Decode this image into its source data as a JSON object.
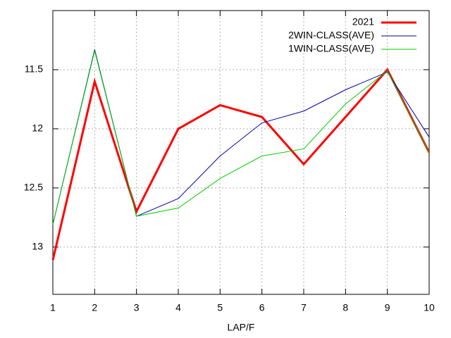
{
  "chart_data": {
    "type": "line",
    "xlabel": "LAP/F",
    "x": [
      1,
      2,
      3,
      4,
      5,
      6,
      7,
      8,
      9,
      10
    ],
    "xlim": [
      1,
      10
    ],
    "xticks": [
      1,
      2,
      3,
      4,
      5,
      6,
      7,
      8,
      9,
      10
    ],
    "ylim": [
      13.4,
      11.0
    ],
    "yticks": [
      13,
      12.5,
      12,
      11.5
    ],
    "grid": true,
    "legend": "top-right",
    "series": [
      {
        "name": "2021",
        "color": "#ff0000",
        "width": 3,
        "values": [
          13.11,
          11.6,
          12.7,
          12.0,
          11.8,
          11.9,
          12.3,
          11.9,
          11.5,
          12.2
        ]
      },
      {
        "name": "2WIN-CLASS(AVE)",
        "color": "#0000a0",
        "width": 1,
        "values": [
          12.81,
          11.33,
          12.74,
          12.59,
          12.23,
          11.95,
          11.85,
          11.67,
          11.52,
          12.07
        ]
      },
      {
        "name": "1WIN-CLASS(AVE)",
        "color": "#00cc00",
        "width": 1,
        "values": [
          12.81,
          11.34,
          12.74,
          12.67,
          12.42,
          12.23,
          12.17,
          11.79,
          11.51,
          12.2
        ]
      }
    ]
  }
}
